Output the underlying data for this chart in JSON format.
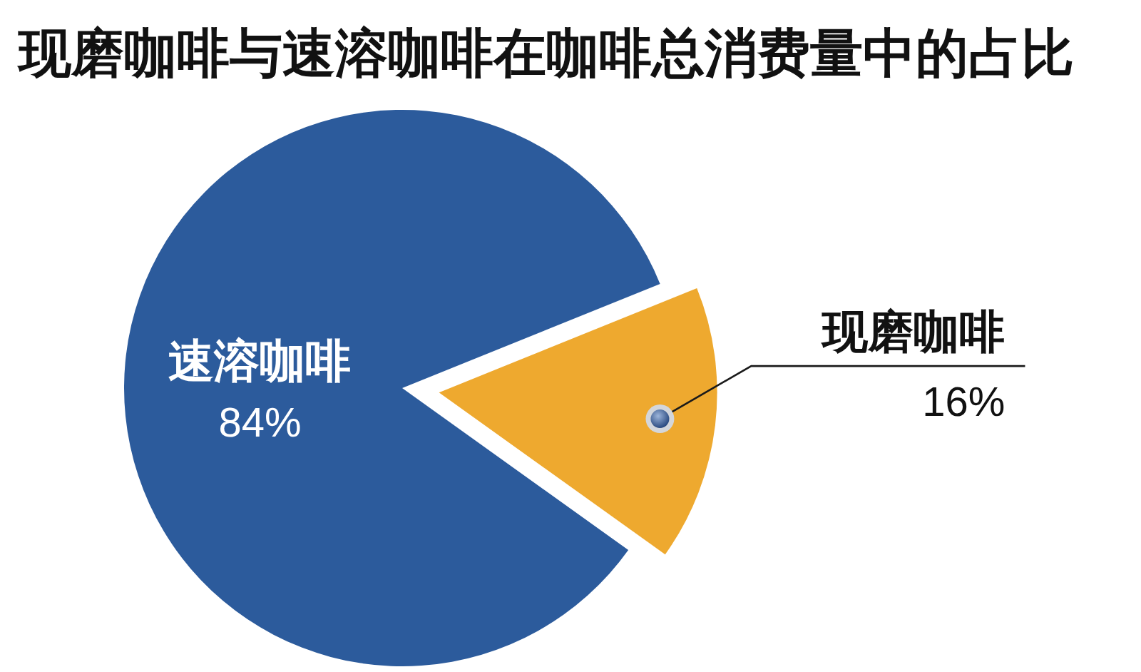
{
  "chart_data": {
    "type": "pie",
    "title": "现磨咖啡与速溶咖啡在咖啡总消费量中的占比",
    "categories": [
      "现磨咖啡",
      "速溶咖啡"
    ],
    "values": [
      16,
      84
    ],
    "colors": [
      "#eea92f",
      "#2c5b9c"
    ],
    "value_labels": [
      "16%",
      "84%"
    ]
  }
}
